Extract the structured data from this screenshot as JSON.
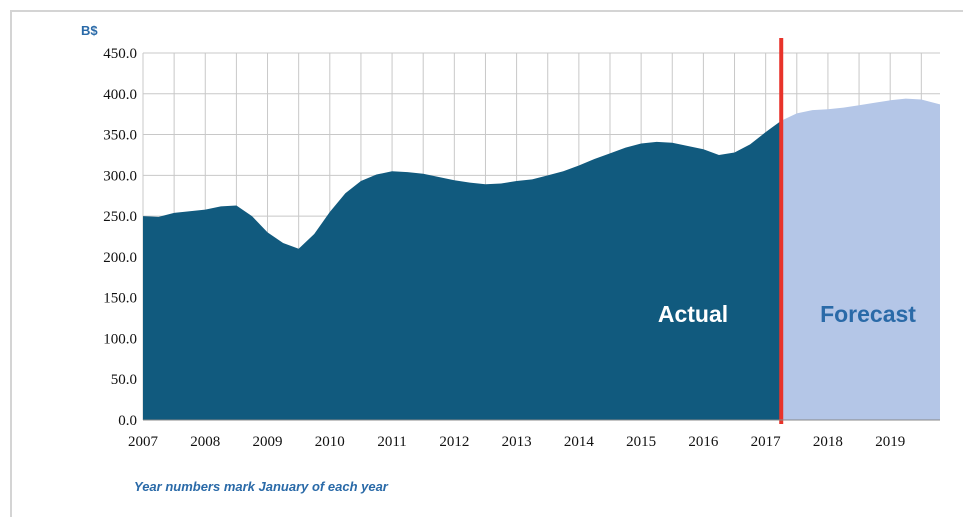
{
  "chart_data": {
    "type": "area",
    "ylabel": "B$",
    "ylim": [
      0,
      450
    ],
    "yticks": [
      "0.0",
      "50.0",
      "100.0",
      "150.0",
      "200.0",
      "250.0",
      "300.0",
      "350.0",
      "400.0",
      "450.0"
    ],
    "xlim": [
      2007,
      2019.8
    ],
    "xticks": [
      "2007",
      "2008",
      "2009",
      "2010",
      "2011",
      "2012",
      "2013",
      "2014",
      "2015",
      "2016",
      "2017",
      "2018",
      "2019"
    ],
    "grid": true,
    "divider_x": 2017.25,
    "note": "Year numbers mark January of each year",
    "colors": {
      "actual": "#115a7e",
      "forecast": "#b4c6e7",
      "divider": "#e8332a",
      "grid": "#c8c8c8"
    },
    "series": [
      {
        "name": "Actual",
        "x": [
          2007.0,
          2007.25,
          2007.5,
          2007.75,
          2008.0,
          2008.25,
          2008.5,
          2008.75,
          2009.0,
          2009.25,
          2009.5,
          2009.75,
          2010.0,
          2010.25,
          2010.5,
          2010.75,
          2011.0,
          2011.25,
          2011.5,
          2011.75,
          2012.0,
          2012.25,
          2012.5,
          2012.75,
          2013.0,
          2013.25,
          2013.5,
          2013.75,
          2014.0,
          2014.25,
          2014.5,
          2014.75,
          2015.0,
          2015.25,
          2015.5,
          2015.75,
          2016.0,
          2016.25,
          2016.5,
          2016.75,
          2017.0,
          2017.25
        ],
        "values": [
          250,
          249,
          254,
          256,
          258,
          262,
          263,
          250,
          230,
          217,
          210,
          228,
          255,
          278,
          293,
          301,
          305,
          304,
          302,
          298,
          294,
          291,
          289,
          290,
          293,
          295,
          300,
          305,
          312,
          320,
          327,
          334,
          339,
          341,
          340,
          336,
          332,
          325,
          328,
          338,
          353,
          367
        ]
      },
      {
        "name": "Forecast",
        "x": [
          2017.25,
          2017.5,
          2017.75,
          2018.0,
          2018.25,
          2018.5,
          2018.75,
          2019.0,
          2019.25,
          2019.5,
          2019.8
        ],
        "values": [
          367,
          376,
          380,
          381,
          383,
          386,
          389,
          392,
          394,
          393,
          387
        ]
      }
    ]
  }
}
